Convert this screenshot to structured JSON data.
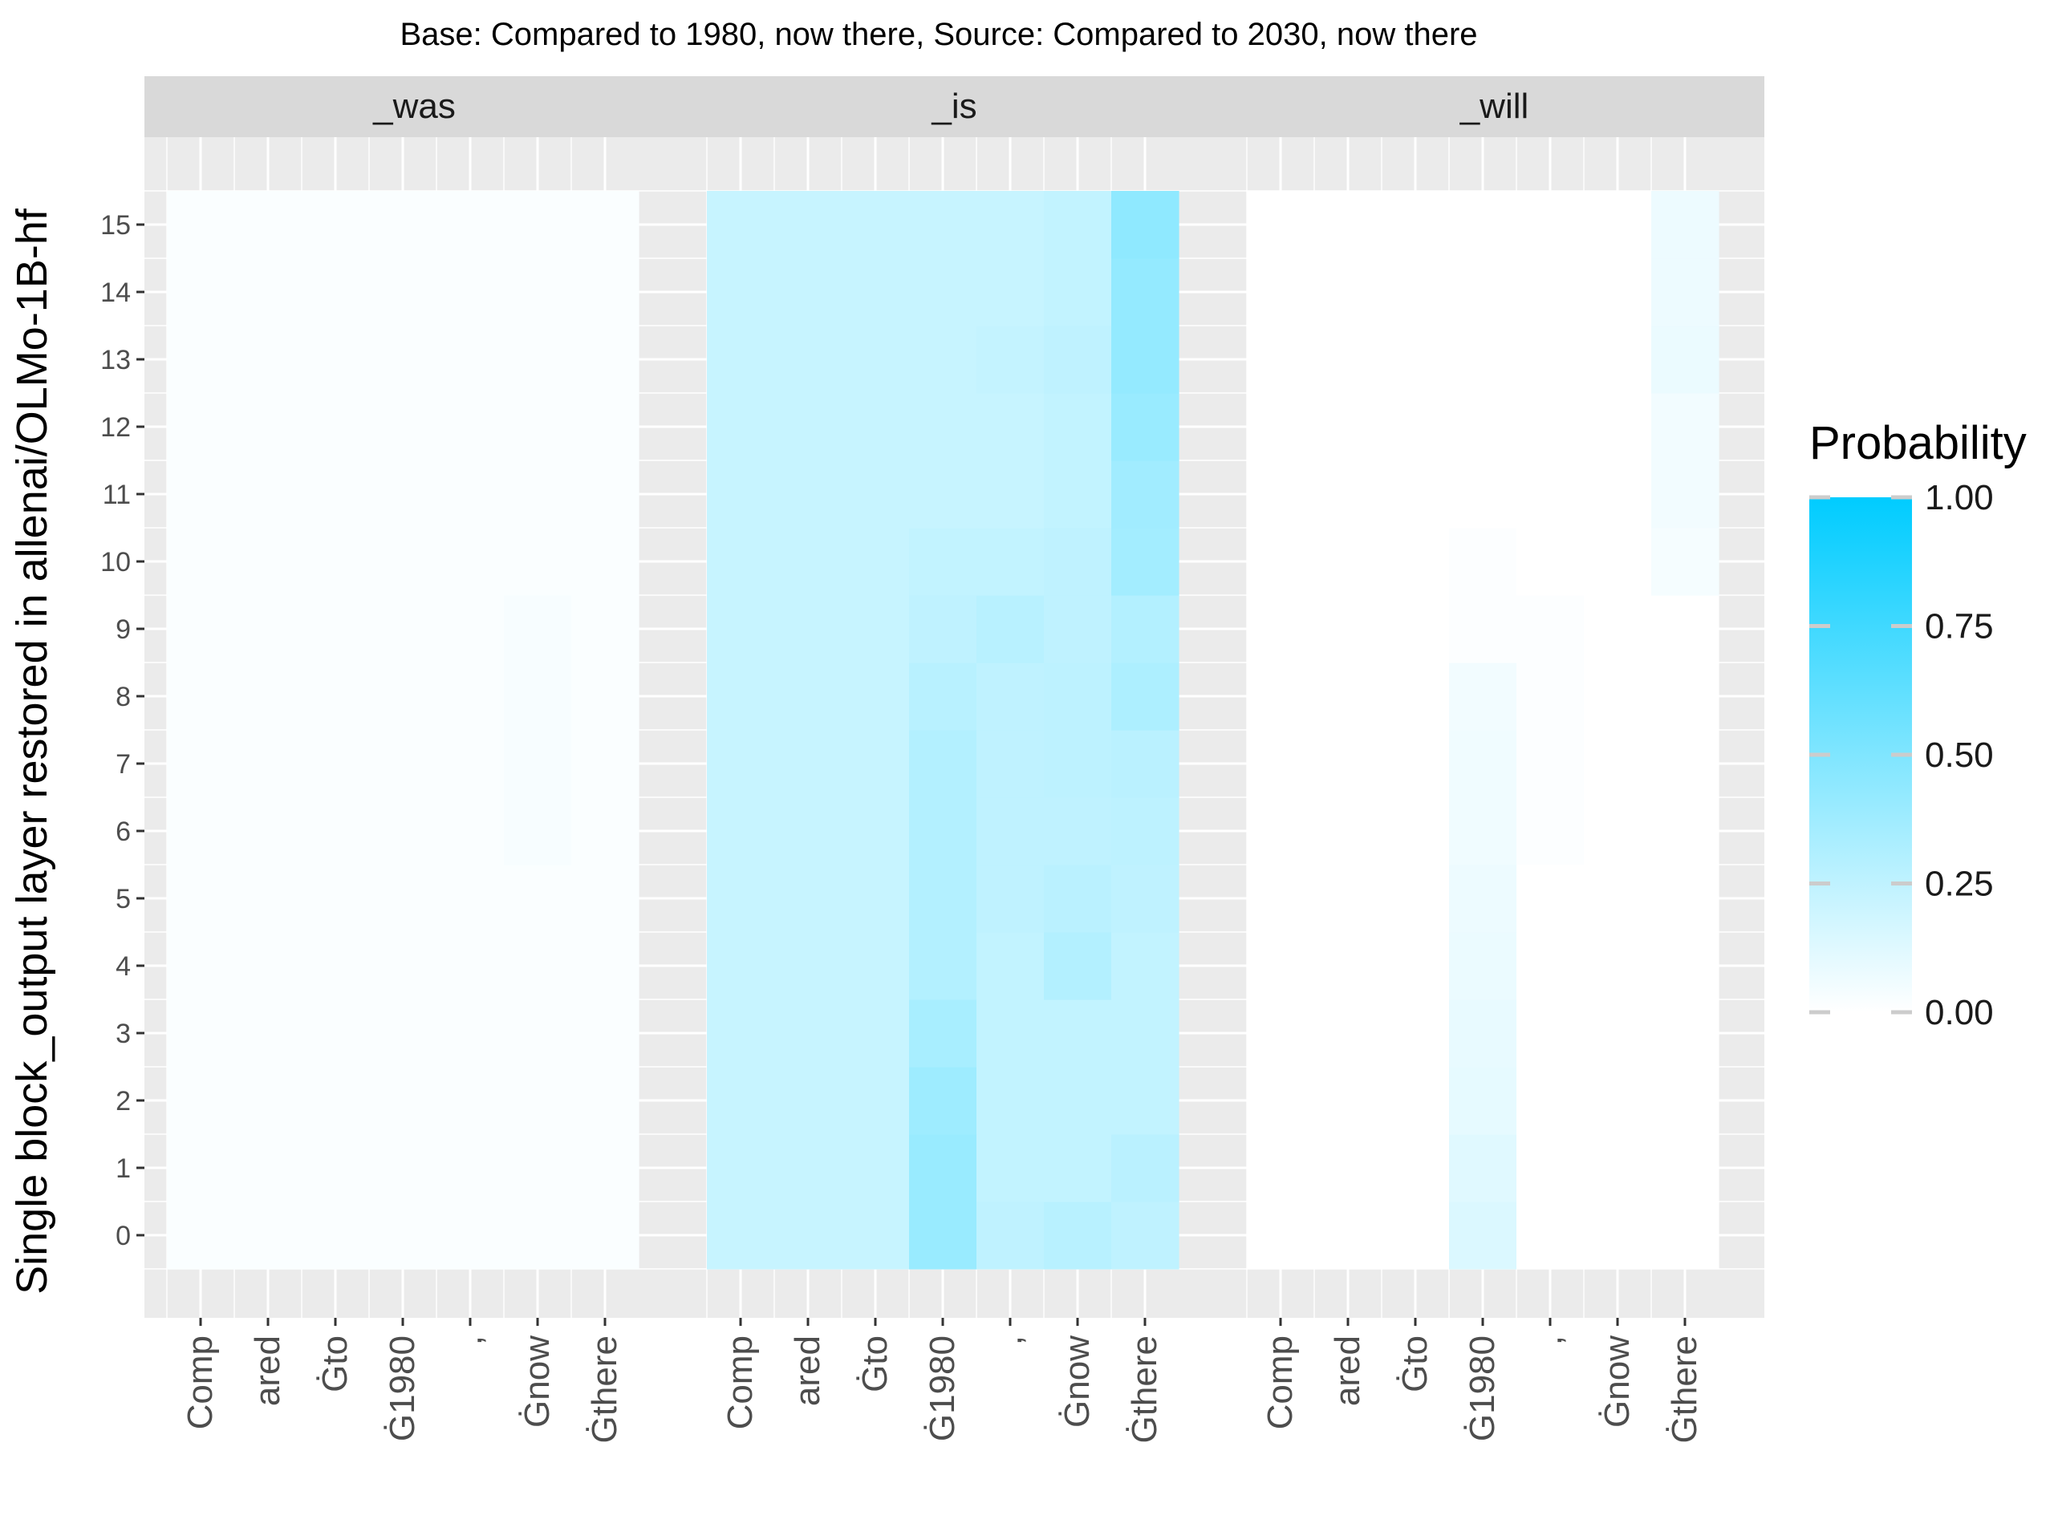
{
  "chart_data": {
    "type": "heatmap",
    "title": "Base: Compared to 1980, now there, Source: Compared to 2030, now there",
    "xlabel": "",
    "ylabel": "Single block_output layer restored in allenai/OLMo-1B-hf",
    "x_categories": [
      "Comp",
      "ared",
      "Ġto",
      "Ġ1980",
      ",",
      "Ġnow",
      "Ġthere"
    ],
    "y_categories": [
      0,
      1,
      2,
      3,
      4,
      5,
      6,
      7,
      8,
      9,
      10,
      11,
      12,
      13,
      14,
      15
    ],
    "legend": {
      "title": "Probability",
      "ticks": [
        "0.00",
        "0.25",
        "0.50",
        "0.75",
        "1.00"
      ],
      "tick_values": [
        0,
        0.25,
        0.5,
        0.75,
        1.0
      ],
      "range": [
        0,
        1
      ],
      "low_color": "#ffffff",
      "high_color": "#00ccff",
      "placement": "right"
    },
    "panel_background": "#ebebeb",
    "strip_background": "#d9d9d9",
    "grid": true,
    "facets": [
      {
        "name": "_was",
        "values": [
          [
            0.02,
            0.02,
            0.02,
            0.02,
            0.02,
            0.02,
            0.02
          ],
          [
            0.02,
            0.02,
            0.02,
            0.02,
            0.02,
            0.02,
            0.02
          ],
          [
            0.02,
            0.02,
            0.02,
            0.02,
            0.02,
            0.02,
            0.02
          ],
          [
            0.02,
            0.02,
            0.02,
            0.02,
            0.02,
            0.02,
            0.02
          ],
          [
            0.02,
            0.02,
            0.02,
            0.02,
            0.02,
            0.02,
            0.02
          ],
          [
            0.02,
            0.02,
            0.02,
            0.02,
            0.02,
            0.02,
            0.02
          ],
          [
            0.02,
            0.02,
            0.02,
            0.02,
            0.02,
            0.03,
            0.02
          ],
          [
            0.02,
            0.02,
            0.02,
            0.02,
            0.02,
            0.03,
            0.02
          ],
          [
            0.02,
            0.02,
            0.02,
            0.02,
            0.02,
            0.03,
            0.02
          ],
          [
            0.02,
            0.02,
            0.02,
            0.02,
            0.02,
            0.03,
            0.02
          ],
          [
            0.02,
            0.02,
            0.02,
            0.02,
            0.02,
            0.02,
            0.02
          ],
          [
            0.02,
            0.02,
            0.02,
            0.02,
            0.02,
            0.02,
            0.02
          ],
          [
            0.02,
            0.02,
            0.02,
            0.02,
            0.02,
            0.02,
            0.02
          ],
          [
            0.02,
            0.02,
            0.02,
            0.02,
            0.02,
            0.02,
            0.02
          ],
          [
            0.02,
            0.02,
            0.02,
            0.02,
            0.02,
            0.02,
            0.02
          ],
          [
            0.02,
            0.02,
            0.02,
            0.02,
            0.02,
            0.02,
            0.02
          ]
        ]
      },
      {
        "name": "_is",
        "values": [
          [
            0.22,
            0.22,
            0.22,
            0.4,
            0.25,
            0.28,
            0.25
          ],
          [
            0.22,
            0.22,
            0.22,
            0.4,
            0.24,
            0.24,
            0.27
          ],
          [
            0.22,
            0.22,
            0.22,
            0.38,
            0.24,
            0.24,
            0.24
          ],
          [
            0.22,
            0.22,
            0.22,
            0.34,
            0.24,
            0.24,
            0.24
          ],
          [
            0.22,
            0.22,
            0.22,
            0.3,
            0.24,
            0.3,
            0.24
          ],
          [
            0.22,
            0.22,
            0.22,
            0.3,
            0.25,
            0.27,
            0.25
          ],
          [
            0.22,
            0.22,
            0.22,
            0.3,
            0.25,
            0.25,
            0.26
          ],
          [
            0.22,
            0.22,
            0.22,
            0.3,
            0.25,
            0.26,
            0.27
          ],
          [
            0.22,
            0.22,
            0.22,
            0.28,
            0.25,
            0.26,
            0.32
          ],
          [
            0.22,
            0.22,
            0.22,
            0.25,
            0.28,
            0.25,
            0.3
          ],
          [
            0.22,
            0.22,
            0.22,
            0.24,
            0.24,
            0.25,
            0.36
          ],
          [
            0.22,
            0.22,
            0.22,
            0.22,
            0.22,
            0.24,
            0.37
          ],
          [
            0.22,
            0.22,
            0.22,
            0.22,
            0.22,
            0.24,
            0.4
          ],
          [
            0.22,
            0.22,
            0.22,
            0.22,
            0.23,
            0.25,
            0.42
          ],
          [
            0.22,
            0.22,
            0.22,
            0.22,
            0.22,
            0.24,
            0.42
          ],
          [
            0.22,
            0.22,
            0.22,
            0.22,
            0.22,
            0.24,
            0.44
          ]
        ]
      },
      {
        "name": "_will",
        "values": [
          [
            0.0,
            0.0,
            0.0,
            0.14,
            0.0,
            0.0,
            0.0
          ],
          [
            0.0,
            0.0,
            0.0,
            0.12,
            0.0,
            0.0,
            0.0
          ],
          [
            0.0,
            0.0,
            0.0,
            0.1,
            0.0,
            0.0,
            0.0
          ],
          [
            0.0,
            0.0,
            0.0,
            0.09,
            0.0,
            0.0,
            0.0
          ],
          [
            0.0,
            0.0,
            0.0,
            0.08,
            0.0,
            0.0,
            0.0
          ],
          [
            0.0,
            0.0,
            0.0,
            0.07,
            0.0,
            0.0,
            0.0
          ],
          [
            0.0,
            0.0,
            0.0,
            0.06,
            0.01,
            0.0,
            0.0
          ],
          [
            0.0,
            0.0,
            0.0,
            0.06,
            0.01,
            0.0,
            0.0
          ],
          [
            0.0,
            0.0,
            0.0,
            0.05,
            0.01,
            0.0,
            0.0
          ],
          [
            0.0,
            0.0,
            0.0,
            0.01,
            0.01,
            0.0,
            0.0
          ],
          [
            0.0,
            0.0,
            0.0,
            0.01,
            0.0,
            0.0,
            0.04
          ],
          [
            0.0,
            0.0,
            0.0,
            0.0,
            0.0,
            0.0,
            0.05
          ],
          [
            0.0,
            0.0,
            0.0,
            0.0,
            0.0,
            0.0,
            0.05
          ],
          [
            0.0,
            0.0,
            0.0,
            0.0,
            0.0,
            0.0,
            0.08
          ],
          [
            0.0,
            0.0,
            0.0,
            0.0,
            0.0,
            0.0,
            0.07
          ],
          [
            0.0,
            0.0,
            0.0,
            0.0,
            0.0,
            0.0,
            0.07
          ]
        ]
      }
    ]
  }
}
